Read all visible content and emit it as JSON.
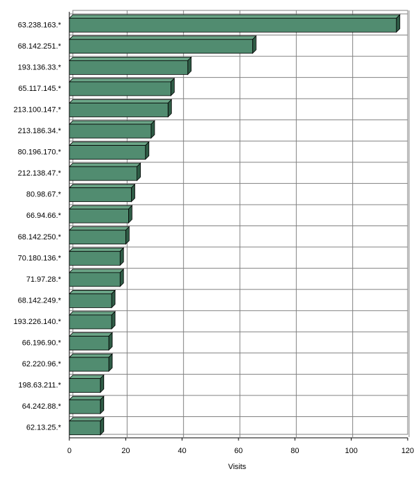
{
  "chart_data": {
    "type": "bar",
    "orientation": "horizontal",
    "style": "3d",
    "categories": [
      "63.238.163.*",
      "68.142.251.*",
      "193.136.33.*",
      "65.117.145.*",
      "213.100.147.*",
      "213.186.34.*",
      "80.196.170.*",
      "212.138.47.*",
      "80.98.67.*",
      "66.94.66.*",
      "68.142.250.*",
      "70.180.136.*",
      "71.97.28.*",
      "68.142.249.*",
      "193.226.140.*",
      "66.196.90.*",
      "62.220.96.*",
      "198.63.211.*",
      "64.242.88.*",
      "62.13.25.*"
    ],
    "values": [
      116,
      65,
      42,
      36,
      35,
      29,
      27,
      24,
      22,
      21,
      20,
      18,
      18,
      15,
      15,
      14,
      14,
      11,
      11,
      11
    ],
    "xlabel": "Visits",
    "xlim": [
      0,
      120
    ],
    "xticks": [
      0,
      20,
      40,
      60,
      80,
      100,
      120
    ],
    "grid": true,
    "legend": "none",
    "colors": {
      "bar_front": "#518c70",
      "bar_top": "#6aa486",
      "bar_side": "#2f5c46",
      "bar_outline": "#000000",
      "grid": "#808080",
      "axis": "#000000",
      "background": "#ffffff"
    }
  }
}
